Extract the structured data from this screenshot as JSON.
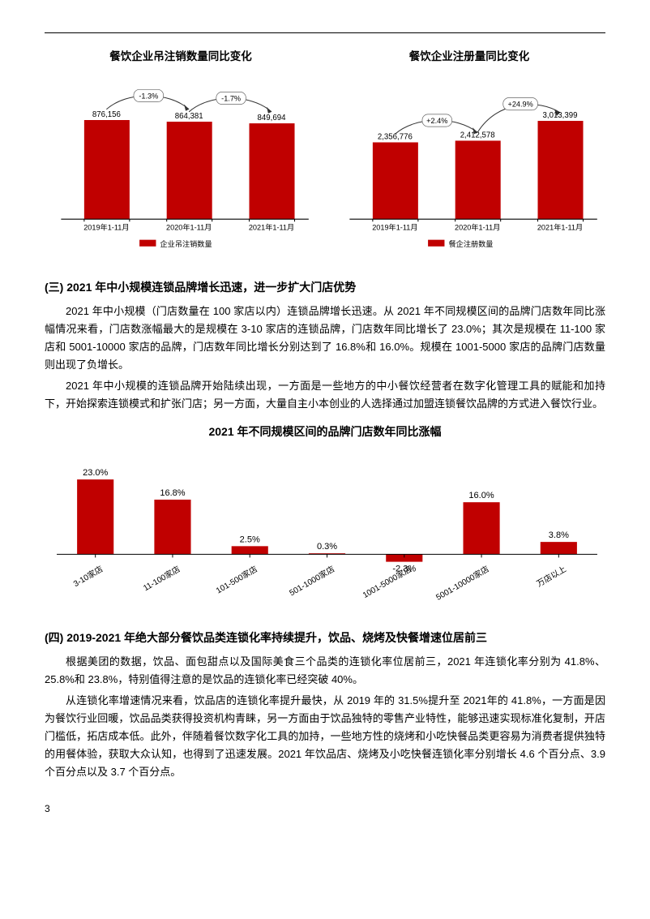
{
  "topCharts": {
    "left": {
      "title": "餐饮企业吊注销数量同比变化",
      "categories": [
        "2019年1-11月",
        "2020年1-11月",
        "2021年1-11月"
      ],
      "values": [
        876156,
        864381,
        849694
      ],
      "value_labels": [
        "876,156",
        "864,381",
        "849,694"
      ],
      "arrow_labels": [
        "-1.3%",
        "-1.7%"
      ],
      "bar_color": "#c00000",
      "legend": "企业吊注销数量",
      "font_color": "#000000",
      "axis_color": "#000000",
      "arrow_color": "#333333",
      "ylim": [
        0,
        950000
      ]
    },
    "right": {
      "title": "餐饮企业注册量同比变化",
      "categories": [
        "2019年1-11月",
        "2020年1-11月",
        "2021年1-11月"
      ],
      "values": [
        2356776,
        2412578,
        3013399
      ],
      "value_labels": [
        "2,356,776",
        "2,412,578",
        "3,013,399"
      ],
      "arrow_labels": [
        "+2.4%",
        "+24.9%"
      ],
      "bar_color": "#c00000",
      "legend": "餐企注册数量",
      "font_color": "#000000",
      "axis_color": "#000000",
      "arrow_color": "#333333",
      "ylim": [
        0,
        3200000
      ]
    }
  },
  "section3": {
    "heading": "(三) 2021 年中小规模连锁品牌增长迅速，进一步扩大门店优势",
    "p1": "2021 年中小规模（门店数量在 100 家店以内）连锁品牌增长迅速。从 2021 年不同规模区间的品牌门店数年同比涨幅情况来看，门店数涨幅最大的是规模在 3-10 家店的连锁品牌，门店数年同比增长了 23.0%；其次是规模在 11-100 家店和 5001-10000 家店的品牌，门店数年同比增长分别达到了 16.8%和 16.0%。规模在 1001-5000 家店的品牌门店数量则出现了负增长。",
    "p2": "2021 年中小规模的连锁品牌开始陆续出现，一方面是一些地方的中小餐饮经营者在数字化管理工具的赋能和加持下，开始探索连锁模式和扩张门店；另一方面，大量自主小本创业的人选择通过加盟连锁餐饮品牌的方式进入餐饮行业。"
  },
  "midChart": {
    "title": "2021 年不同规模区间的品牌门店数年同比涨幅",
    "categories": [
      "3-10家店",
      "11-100家店",
      "101-500家店",
      "501-1000家店",
      "1001-5000家店",
      "5001-10000家店",
      "万店以上"
    ],
    "values": [
      23.0,
      16.8,
      2.5,
      0.3,
      -2.3,
      16.0,
      3.8
    ],
    "value_labels": [
      "23.0%",
      "16.8%",
      "2.5%",
      "0.3%",
      "-2.3%",
      "16.0%",
      "3.8%"
    ],
    "bar_color": "#c00000",
    "font_color": "#000000",
    "axis_color": "#000000",
    "ylim": [
      -5,
      25
    ]
  },
  "section4": {
    "heading": "(四) 2019-2021 年绝大部分餐饮品类连锁化率持续提升，饮品、烧烤及快餐增速位居前三",
    "p1": "根据美团的数据，饮品、面包甜点以及国际美食三个品类的连锁化率位居前三，2021 年连锁化率分别为 41.8%、25.8%和 23.8%，特别值得注意的是饮品的连锁化率已经突破 40%。",
    "p2": "从连锁化率增速情况来看，饮品店的连锁化率提升最快，从 2019 年的 31.5%提升至 2021年的 41.8%，一方面是因为餐饮行业回暖，饮品品类获得投资机构青睐，另一方面由于饮品独特的零售产业特性，能够迅速实现标准化复制，开店门槛低，拓店成本低。此外，伴随着餐饮数字化工具的加持，一些地方性的烧烤和小吃快餐品类更容易为消费者提供独特的用餐体验，获取大众认知，也得到了迅速发展。2021 年饮品店、烧烤及小吃快餐连锁化率分别增长 4.6 个百分点、3.9 个百分点以及 3.7 个百分点。"
  },
  "pageNumber": "3"
}
